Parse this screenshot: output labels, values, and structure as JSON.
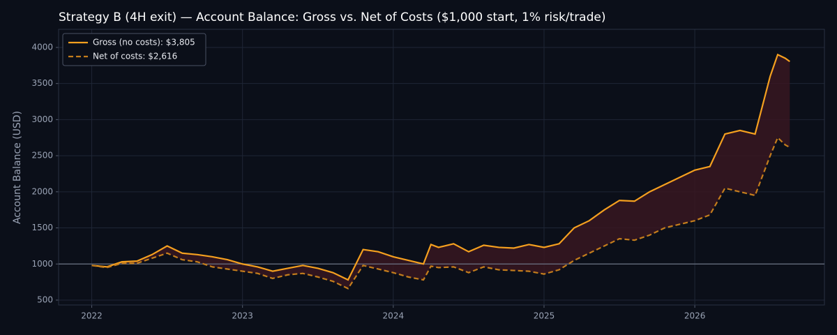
{
  "chart_data": {
    "type": "line",
    "title": "Strategy B (4H exit) — Account Balance: Gross vs. Net of Costs ($1,000 start, 1% risk/trade)",
    "y_label": "Account Balance (USD)",
    "x": [
      2022.0,
      2022.1,
      2022.2,
      2022.3,
      2022.4,
      2022.5,
      2022.6,
      2022.7,
      2022.8,
      2022.9,
      2023.0,
      2023.1,
      2023.2,
      2023.3,
      2023.4,
      2023.5,
      2023.6,
      2023.7,
      2023.8,
      2023.9,
      2024.0,
      2024.1,
      2024.2,
      2024.25,
      2024.3,
      2024.4,
      2024.5,
      2024.6,
      2024.7,
      2024.8,
      2024.9,
      2025.0,
      2025.1,
      2025.2,
      2025.3,
      2025.4,
      2025.5,
      2025.6,
      2025.7,
      2025.8,
      2025.9,
      2026.0,
      2026.1,
      2026.2,
      2026.3,
      2026.4,
      2026.5,
      2026.55,
      2026.6,
      2026.63
    ],
    "series": [
      {
        "name": "Gross (no costs): $3,805",
        "color": "#f5a01f",
        "dash": false,
        "values": [
          980,
          960,
          1030,
          1040,
          1130,
          1250,
          1150,
          1130,
          1100,
          1060,
          1000,
          960,
          900,
          940,
          980,
          940,
          880,
          780,
          1200,
          1170,
          1100,
          1050,
          1000,
          1270,
          1230,
          1280,
          1170,
          1260,
          1230,
          1220,
          1270,
          1230,
          1280,
          1500,
          1600,
          1750,
          1880,
          1870,
          2000,
          2100,
          2200,
          2300,
          2350,
          2800,
          2850,
          2800,
          3600,
          3900,
          3850,
          3805
        ]
      },
      {
        "name": "Net of costs: $2,616",
        "color": "#c47d1c",
        "dash": true,
        "values": [
          980,
          950,
          1010,
          1010,
          1080,
          1150,
          1060,
          1030,
          960,
          930,
          900,
          870,
          800,
          850,
          870,
          820,
          760,
          660,
          980,
          930,
          880,
          820,
          780,
          970,
          950,
          960,
          880,
          960,
          920,
          910,
          900,
          860,
          920,
          1050,
          1150,
          1250,
          1350,
          1330,
          1400,
          1500,
          1550,
          1600,
          1680,
          2050,
          2000,
          1950,
          2500,
          2750,
          2650,
          2616
        ]
      }
    ],
    "fill_between_color": "#3a1620",
    "reference_line": 1000,
    "xlim": [
      2021.78,
      2026.86
    ],
    "xticks": [
      2022,
      2023,
      2024,
      2025,
      2026
    ],
    "ylim": [
      432,
      4251
    ],
    "yticks": [
      500,
      1000,
      1500,
      2000,
      2500,
      3000,
      3500,
      4000
    ],
    "grid": true,
    "legend": "upper left"
  }
}
